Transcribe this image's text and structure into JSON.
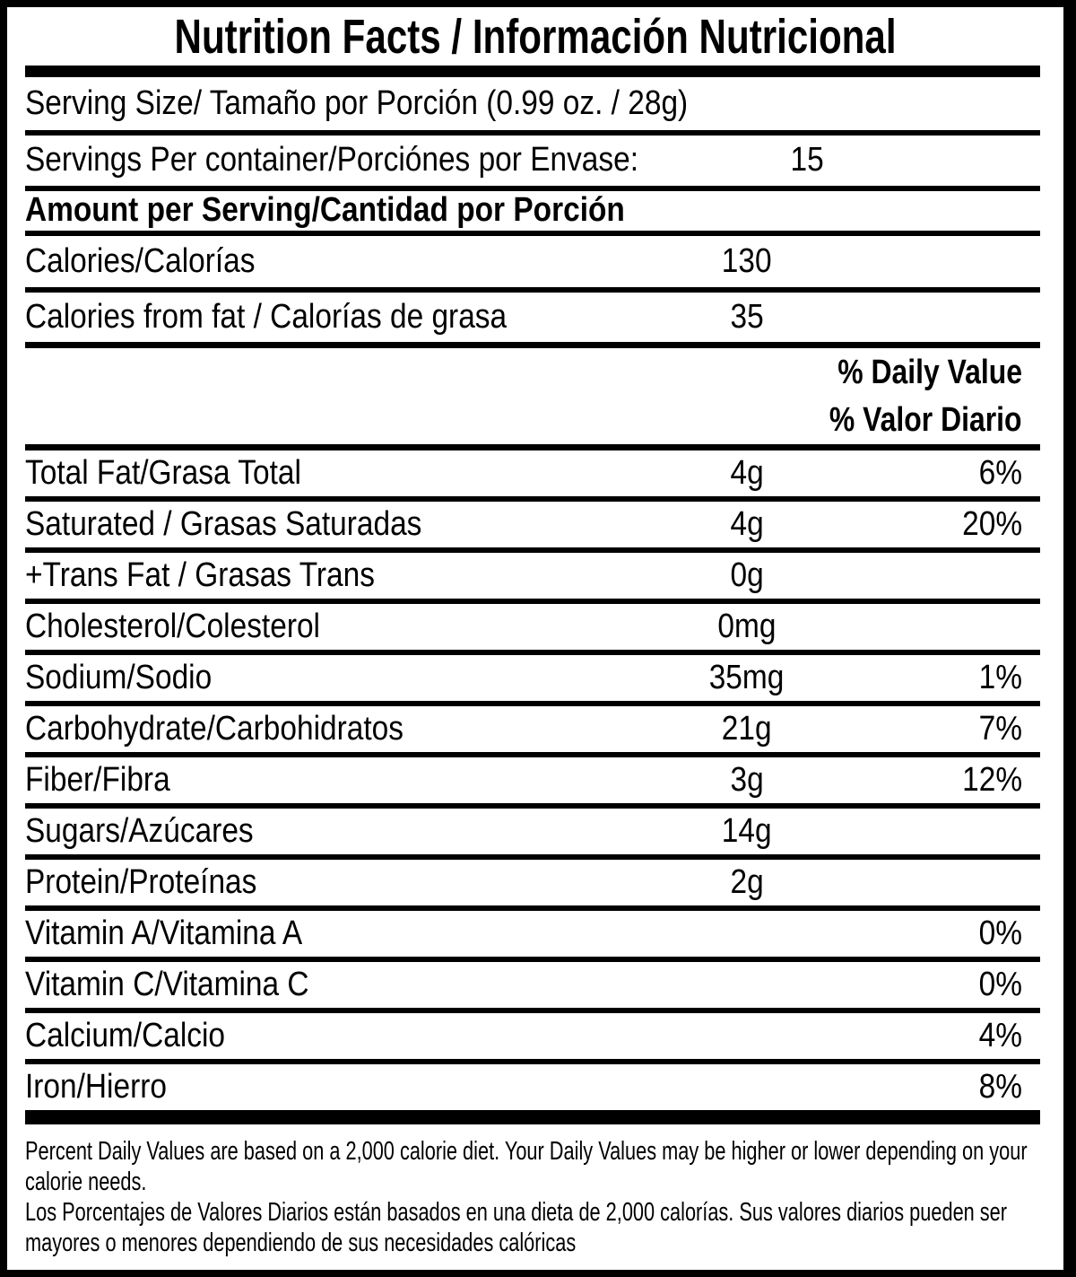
{
  "header": {
    "title": "Nutrition Facts / Información Nutricional"
  },
  "serving": {
    "size_label": "Serving Size/ Tamaño por Porción (0.99 oz. / 28g)",
    "per_container_label": "Servings Per container/Porciónes por Envase:",
    "per_container_value": "15"
  },
  "amount_per_serving": {
    "label": "Amount per Serving/Cantidad por Porción"
  },
  "calories": {
    "label": "Calories/Calorías",
    "value": "130"
  },
  "calories_from_fat": {
    "label": "Calories from fat / Calorías de grasa",
    "value": "35"
  },
  "daily_value_header": {
    "line1": "% Daily Value",
    "line2": "% Valor Diario"
  },
  "nutrients": [
    {
      "label": "Total Fat/Grasa Total",
      "amount": "4g",
      "percent": "6%"
    },
    {
      "label": "Saturated / Grasas Saturadas",
      "amount": "4g",
      "percent": "20%"
    },
    {
      "label": "+Trans Fat / Grasas Trans",
      "amount": "0g",
      "percent": ""
    },
    {
      "label": "Cholesterol/Colesterol",
      "amount": "0mg",
      "percent": ""
    },
    {
      "label": "Sodium/Sodio",
      "amount": "35mg",
      "percent": "1%"
    },
    {
      "label": "Carbohydrate/Carbohidratos",
      "amount": "21g",
      "percent": "7%"
    },
    {
      "label": "Fiber/Fibra",
      "amount": "3g",
      "percent": "12%"
    },
    {
      "label": "Sugars/Azúcares",
      "amount": "14g",
      "percent": ""
    },
    {
      "label": "Protein/Proteínas",
      "amount": "2g",
      "percent": ""
    },
    {
      "label": "Vitamin A/Vitamina A",
      "amount": "",
      "percent": "0%"
    },
    {
      "label": "Vitamin C/Vitamina C",
      "amount": "",
      "percent": "0%"
    },
    {
      "label": "Calcium/Calcio",
      "amount": "",
      "percent": "4%"
    },
    {
      "label": "Iron/Hierro",
      "amount": "",
      "percent": "8%"
    }
  ],
  "footnote": {
    "lines": [
      "Percent Daily Values are based on a 2,000 calorie diet. Your Daily Values may be higher or lower depending on your",
      "calorie needs.",
      "Los Porcentajes de Valores Diarios están basados en una dieta de 2,000 calorías. Sus valores diarios pueden ser",
      "mayores o menores dependiendo de sus necesidades calóricas"
    ]
  },
  "colors": {
    "ink": "#000000",
    "background": "#ffffff"
  }
}
